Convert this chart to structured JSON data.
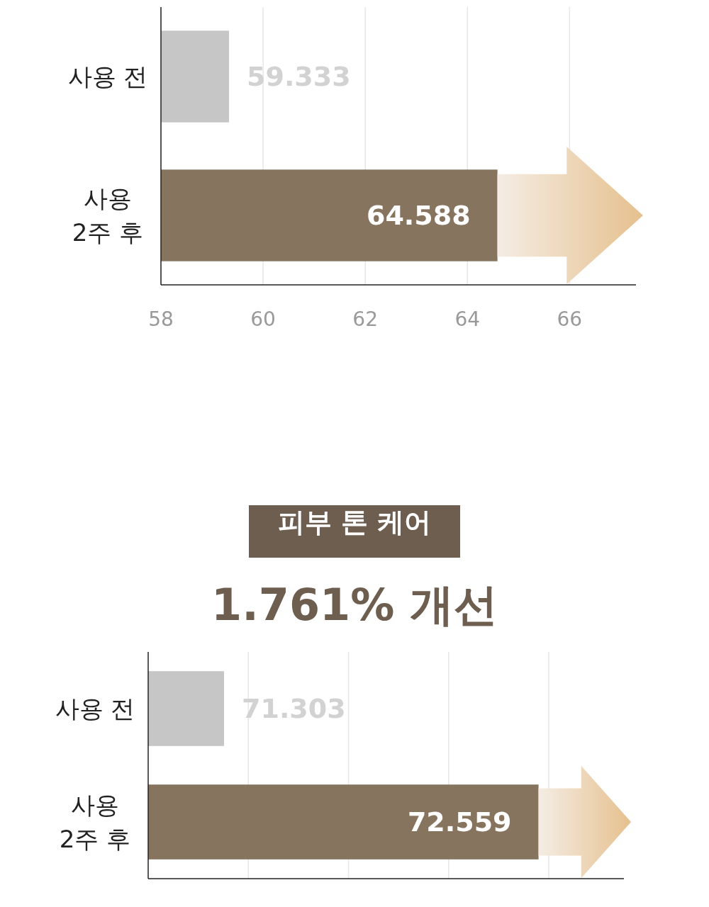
{
  "chart_data": [
    {
      "type": "bar",
      "orientation": "horizontal",
      "categories": [
        "사용 전",
        "사용\n2주 후"
      ],
      "values": [
        59.333,
        64.588
      ],
      "colors": [
        "#c6c6c6",
        "#86745f"
      ],
      "xlim": [
        58,
        67.3
      ],
      "xticks": [
        58,
        60,
        62,
        64,
        66
      ],
      "grid": "x",
      "data_labels": true
    },
    {
      "type": "bar",
      "orientation": "horizontal",
      "title": "피부 톤 케어",
      "subtitle": "1.761% 개선",
      "categories": [
        "사용 전",
        "사용\n2주 후"
      ],
      "values": [
        71.303,
        72.559
      ],
      "colors": [
        "#c6c6c6",
        "#86745f"
      ],
      "xlim": [
        71,
        72.9
      ],
      "xticks": [
        {
          "value": 71.4,
          "label": null
        },
        {
          "value": 71.8,
          "label": null
        },
        {
          "value": 72.2,
          "label": null
        },
        {
          "value": 72.6,
          "label": null
        }
      ],
      "grid": "x",
      "tick_labels": "y",
      "data_labels": true
    }
  ]
}
